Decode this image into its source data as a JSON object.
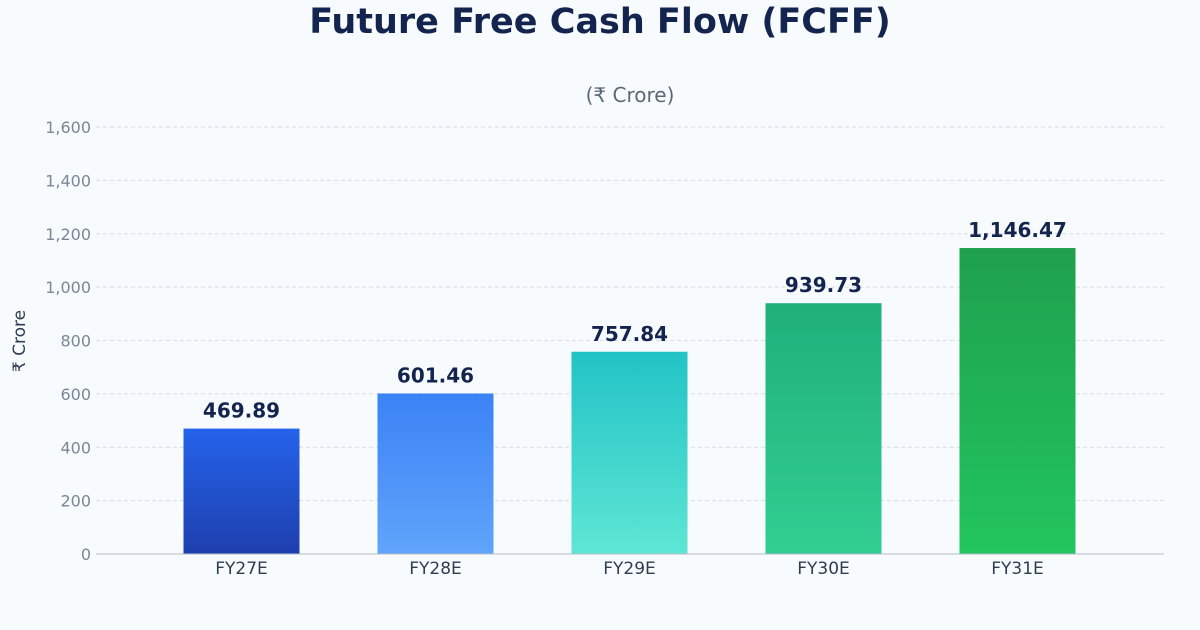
{
  "chart_data": {
    "type": "bar",
    "title": "Future Free Cash Flow (FCFF)",
    "subtitle": "(₹ Crore)",
    "ylabel": "₹ Crore",
    "xlabel": "",
    "categories": [
      "FY27E",
      "FY28E",
      "FY29E",
      "FY30E",
      "FY31E"
    ],
    "values": [
      469.89,
      601.46,
      757.84,
      939.73,
      1146.47
    ],
    "value_labels": [
      "469.89",
      "601.46",
      "757.84",
      "939.73",
      "1,146.47"
    ],
    "ylim": [
      0,
      1600
    ],
    "yticks": [
      0,
      200,
      400,
      600,
      800,
      1000,
      1200,
      1400,
      1600
    ],
    "ytick_labels": [
      "0",
      "200",
      "400",
      "600",
      "800",
      "1,000",
      "1,200",
      "1,400",
      "1,600"
    ],
    "grid": true,
    "bar_colors": [
      {
        "top": "#2563eb",
        "bottom": "#1e3fae"
      },
      {
        "top": "#3b82f6",
        "bottom": "#60a5fa"
      },
      {
        "top": "#22c3c6",
        "bottom": "#5ee6d4"
      },
      {
        "top": "#20b07a",
        "bottom": "#31ce92"
      },
      {
        "top": "#1fa04e",
        "bottom": "#22c55e"
      }
    ]
  }
}
